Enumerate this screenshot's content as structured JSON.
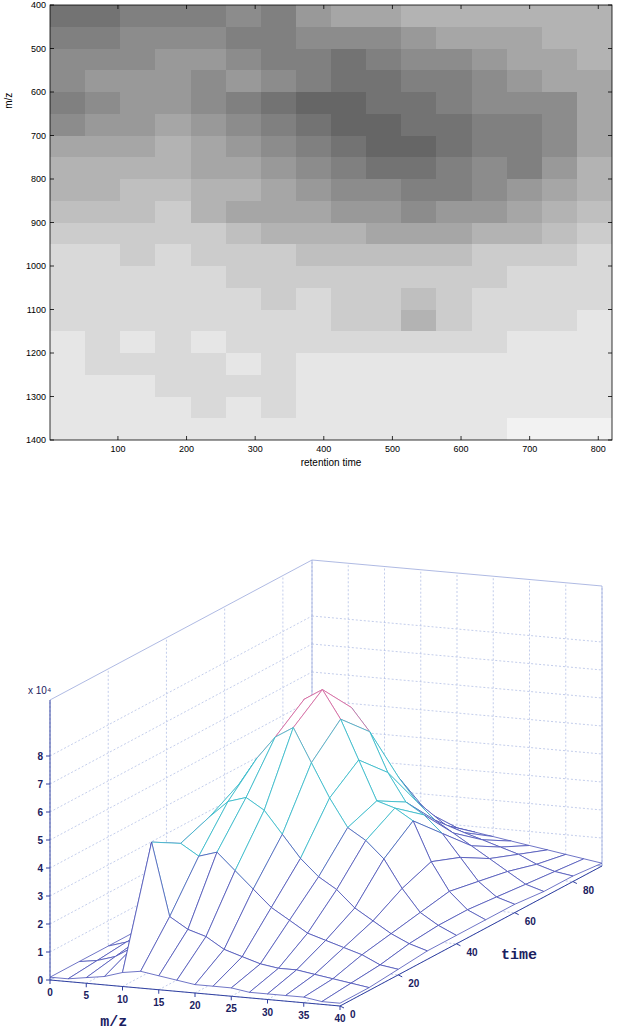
{
  "chart_data": [
    {
      "type": "heatmap",
      "xlabel": "retention time",
      "ylabel": "m/z",
      "xlim": [
        1,
        820
      ],
      "xticks": [
        100,
        200,
        300,
        400,
        500,
        600,
        700,
        800
      ],
      "ylim": [
        400,
        1400
      ],
      "yticks": [
        400,
        500,
        600,
        700,
        800,
        900,
        1000,
        1100,
        1200,
        1300,
        1400
      ],
      "zlim": [
        0,
        1
      ],
      "values": [
        [
          0.55,
          0.55,
          0.5,
          0.5,
          0.5,
          0.45,
          0.5,
          0.4,
          0.35,
          0.35,
          0.3,
          0.3,
          0.3,
          0.3,
          0.3,
          0.3
        ],
        [
          0.5,
          0.5,
          0.45,
          0.45,
          0.45,
          0.5,
          0.5,
          0.45,
          0.45,
          0.45,
          0.4,
          0.35,
          0.35,
          0.35,
          0.3,
          0.3
        ],
        [
          0.45,
          0.45,
          0.45,
          0.4,
          0.4,
          0.45,
          0.5,
          0.5,
          0.55,
          0.5,
          0.45,
          0.45,
          0.4,
          0.35,
          0.35,
          0.3
        ],
        [
          0.45,
          0.4,
          0.4,
          0.4,
          0.45,
          0.4,
          0.45,
          0.5,
          0.55,
          0.55,
          0.5,
          0.5,
          0.45,
          0.4,
          0.35,
          0.35
        ],
        [
          0.5,
          0.45,
          0.4,
          0.4,
          0.45,
          0.5,
          0.55,
          0.6,
          0.6,
          0.55,
          0.55,
          0.5,
          0.45,
          0.45,
          0.45,
          0.35
        ],
        [
          0.45,
          0.4,
          0.4,
          0.35,
          0.4,
          0.45,
          0.5,
          0.55,
          0.6,
          0.6,
          0.55,
          0.55,
          0.5,
          0.5,
          0.45,
          0.35
        ],
        [
          0.35,
          0.35,
          0.35,
          0.3,
          0.35,
          0.4,
          0.45,
          0.5,
          0.55,
          0.6,
          0.6,
          0.55,
          0.5,
          0.5,
          0.45,
          0.35
        ],
        [
          0.3,
          0.3,
          0.3,
          0.3,
          0.35,
          0.35,
          0.4,
          0.45,
          0.5,
          0.55,
          0.55,
          0.5,
          0.45,
          0.5,
          0.4,
          0.3
        ],
        [
          0.3,
          0.3,
          0.25,
          0.25,
          0.3,
          0.3,
          0.35,
          0.4,
          0.45,
          0.45,
          0.5,
          0.5,
          0.45,
          0.4,
          0.35,
          0.3
        ],
        [
          0.25,
          0.25,
          0.25,
          0.2,
          0.3,
          0.35,
          0.35,
          0.35,
          0.4,
          0.4,
          0.45,
          0.4,
          0.4,
          0.35,
          0.3,
          0.25
        ],
        [
          0.2,
          0.2,
          0.2,
          0.2,
          0.2,
          0.25,
          0.3,
          0.3,
          0.3,
          0.35,
          0.35,
          0.35,
          0.3,
          0.3,
          0.25,
          0.2
        ],
        [
          0.15,
          0.15,
          0.2,
          0.15,
          0.2,
          0.2,
          0.2,
          0.25,
          0.25,
          0.25,
          0.25,
          0.25,
          0.2,
          0.2,
          0.2,
          0.15
        ],
        [
          0.15,
          0.15,
          0.15,
          0.15,
          0.15,
          0.2,
          0.2,
          0.2,
          0.2,
          0.2,
          0.2,
          0.2,
          0.2,
          0.15,
          0.15,
          0.15
        ],
        [
          0.15,
          0.15,
          0.15,
          0.15,
          0.15,
          0.15,
          0.2,
          0.15,
          0.2,
          0.2,
          0.25,
          0.2,
          0.15,
          0.15,
          0.15,
          0.15
        ],
        [
          0.15,
          0.15,
          0.15,
          0.15,
          0.15,
          0.15,
          0.15,
          0.15,
          0.2,
          0.2,
          0.3,
          0.2,
          0.15,
          0.15,
          0.15,
          0.1
        ],
        [
          0.1,
          0.15,
          0.1,
          0.15,
          0.1,
          0.15,
          0.15,
          0.15,
          0.15,
          0.15,
          0.15,
          0.15,
          0.15,
          0.1,
          0.1,
          0.1
        ],
        [
          0.1,
          0.15,
          0.15,
          0.15,
          0.15,
          0.1,
          0.15,
          0.1,
          0.1,
          0.1,
          0.1,
          0.1,
          0.1,
          0.1,
          0.1,
          0.1
        ],
        [
          0.1,
          0.1,
          0.1,
          0.15,
          0.15,
          0.15,
          0.15,
          0.1,
          0.1,
          0.1,
          0.1,
          0.1,
          0.1,
          0.1,
          0.1,
          0.1
        ],
        [
          0.1,
          0.1,
          0.1,
          0.1,
          0.15,
          0.1,
          0.15,
          0.1,
          0.1,
          0.1,
          0.1,
          0.1,
          0.1,
          0.1,
          0.1,
          0.1
        ],
        [
          0.1,
          0.1,
          0.1,
          0.1,
          0.1,
          0.1,
          0.1,
          0.1,
          0.1,
          0.1,
          0.1,
          0.1,
          0.1,
          0.05,
          0.05,
          0.05
        ]
      ]
    },
    {
      "type": "surface",
      "xlabel": "m/z",
      "ylabel": "time",
      "z_scale_label": "x 10⁴",
      "x": [
        0,
        2.5,
        5,
        7.5,
        10,
        12.5,
        15,
        17.5,
        20,
        22.5,
        25,
        27.5,
        30,
        32.5,
        35,
        37.5,
        40
      ],
      "y": [
        0,
        10,
        20,
        30,
        40,
        50,
        60,
        70,
        80,
        90
      ],
      "xlim": [
        0,
        40
      ],
      "xticks": [
        0,
        5,
        10,
        15,
        20,
        25,
        30,
        35,
        40
      ],
      "ylim": [
        0,
        90
      ],
      "yticks": [
        0,
        20,
        40,
        60,
        80
      ],
      "zlim": [
        0,
        10
      ],
      "zticks": [
        0,
        1,
        2,
        3,
        4,
        5,
        6,
        7,
        8
      ],
      "grid": true,
      "values": [
        [
          0.1,
          0.1,
          0.2,
          0.3,
          0.5,
          0.6,
          0.5,
          0.4,
          0.3,
          0.3,
          0.3,
          0.2,
          0.2,
          0.2,
          0.2,
          0.1,
          0.1
        ],
        [
          0.1,
          0.2,
          0.4,
          0.8,
          4.6,
          2.0,
          1.6,
          1.4,
          1.0,
          0.8,
          0.6,
          0.5,
          0.5,
          0.4,
          0.3,
          0.2,
          0.1
        ],
        [
          0.1,
          0.3,
          0.6,
          1.5,
          4.0,
          3.6,
          3.8,
          3.2,
          2.6,
          2.0,
          1.6,
          1.2,
          1.0,
          0.8,
          0.6,
          0.3,
          0.2
        ],
        [
          0.1,
          0.3,
          0.8,
          2.0,
          4.4,
          5.0,
          5.2,
          4.8,
          4.0,
          3.2,
          2.6,
          2.2,
          1.6,
          1.2,
          0.8,
          0.5,
          0.3
        ],
        [
          0.1,
          0.3,
          0.8,
          2.2,
          5.0,
          6.0,
          6.8,
          7.2,
          6.0,
          4.8,
          3.8,
          3.4,
          2.8,
          1.8,
          1.0,
          0.6,
          0.3
        ],
        [
          0.1,
          0.3,
          0.7,
          2.0,
          4.6,
          6.4,
          7.6,
          8.0,
          7.0,
          5.6,
          4.2,
          4.0,
          3.6,
          2.2,
          1.2,
          0.6,
          0.3
        ],
        [
          0.1,
          0.2,
          0.6,
          1.6,
          3.6,
          5.4,
          6.6,
          6.8,
          6.0,
          4.6,
          3.6,
          3.2,
          2.6,
          1.8,
          1.0,
          0.5,
          0.3
        ],
        [
          0.1,
          0.2,
          0.4,
          1.0,
          2.2,
          3.4,
          4.2,
          4.4,
          3.8,
          3.0,
          2.4,
          2.0,
          1.6,
          1.2,
          0.8,
          0.4,
          0.2
        ],
        [
          0.1,
          0.1,
          0.3,
          0.6,
          1.2,
          1.8,
          2.2,
          2.4,
          2.0,
          1.6,
          1.4,
          1.2,
          1.0,
          0.8,
          0.5,
          0.3,
          0.2
        ],
        [
          0.1,
          0.1,
          0.2,
          0.3,
          0.6,
          0.8,
          1.0,
          1.0,
          0.9,
          0.8,
          0.7,
          0.6,
          0.5,
          0.4,
          0.3,
          0.2,
          0.1
        ]
      ]
    }
  ]
}
